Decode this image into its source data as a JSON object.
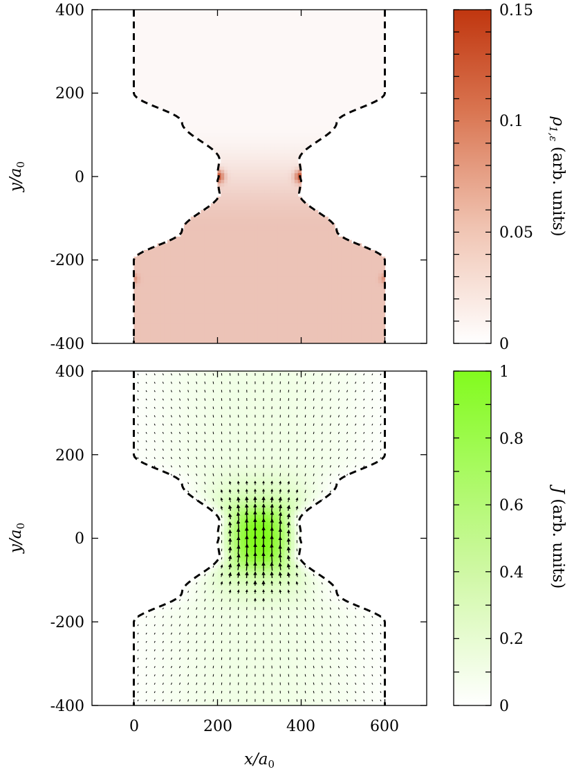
{
  "chart_data": [
    {
      "type": "heatmap",
      "xlabel": "x/a0",
      "ylabel": "y/a0",
      "colorbar_label": "ρ1,ε (arb. units)",
      "xlim": [
        -100,
        700
      ],
      "ylim": [
        -400,
        400
      ],
      "xticks": [
        "0",
        "200",
        "400",
        "600"
      ],
      "yticks": [
        "-400",
        "-200",
        "0",
        "200",
        "400"
      ],
      "colorbar_range": [
        0,
        0.15
      ],
      "colorbar_ticks": [
        "0",
        "0.05",
        "0.1",
        "0.15"
      ],
      "colormap": [
        "#ffffff",
        "#c0360f"
      ],
      "boundary_style": "dashed black",
      "hotspots": [
        {
          "x": 200,
          "y": 0,
          "value": 0.15
        },
        {
          "x": 400,
          "y": 0,
          "value": 0.15
        },
        {
          "x": 0,
          "y": -245,
          "value": 0.08
        },
        {
          "x": 600,
          "y": -245,
          "value": 0.08
        }
      ],
      "upper_region_value": 0.005,
      "lower_region_value": 0.045
    },
    {
      "type": "heatmap",
      "subtype": "vector-field",
      "xlabel": "x/a0",
      "ylabel": "y/a0",
      "colorbar_label": "J (arb. units)",
      "xlim": [
        -100,
        700
      ],
      "ylim": [
        -400,
        400
      ],
      "xticks": [
        "0",
        "200",
        "400",
        "600"
      ],
      "yticks": [
        "-400",
        "-200",
        "0",
        "200",
        "400"
      ],
      "colorbar_range": [
        0,
        1
      ],
      "colorbar_ticks": [
        "0",
        "0.2",
        "0.4",
        "0.6",
        "0.8",
        "1"
      ],
      "colormap": [
        "#ffffff",
        "#82fb1e"
      ],
      "boundary_style": "dashed black",
      "max_current_at": {
        "x": 300,
        "y": 0,
        "value": 1.0
      },
      "flow_direction": "upward, converging into the constriction and diverging after it"
    }
  ],
  "labels": {
    "xlabel_main": "x/",
    "xlabel_sub": "a",
    "xlabel_index": "0",
    "ylabel_main": "y/",
    "ylabel_sub": "a",
    "ylabel_index": "0",
    "cb1_symbol": "ρ",
    "cb1_sub": "1,ε",
    "cb1_units": " (arb. units)",
    "cb2_symbol": "J",
    "cb2_units": " (arb. units)"
  }
}
